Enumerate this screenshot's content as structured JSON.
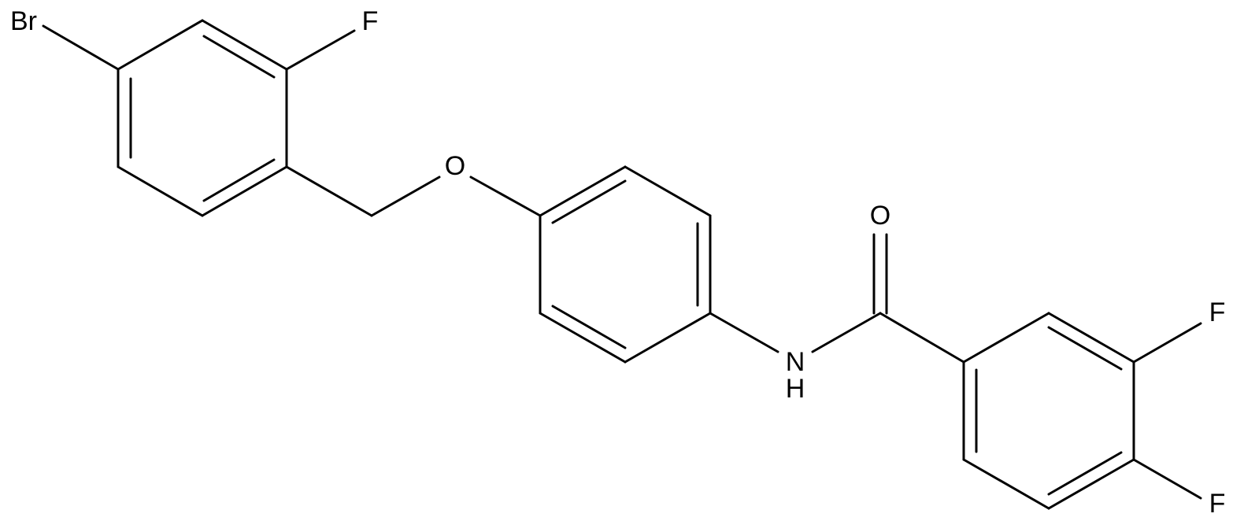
{
  "atoms": [
    {
      "label": "Br"
    },
    {
      "label": "F"
    },
    {
      "label": "O"
    },
    {
      "label": "N"
    },
    {
      "label": "H"
    },
    {
      "label": "O"
    },
    {
      "label": "F"
    },
    {
      "label": "F"
    }
  ]
}
